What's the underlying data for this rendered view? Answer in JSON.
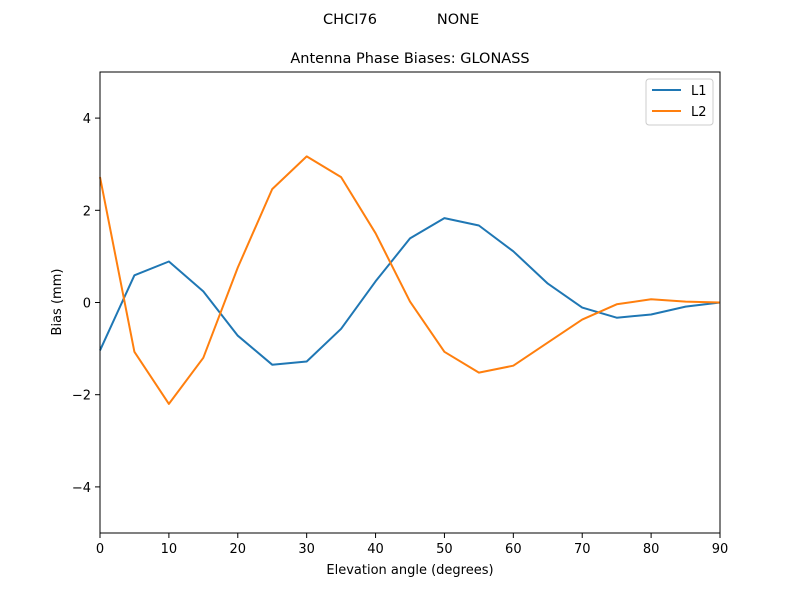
{
  "figure": {
    "suptitle_left": "CHCI76",
    "suptitle_right": "NONE",
    "title": "Antenna Phase Biases: GLONASS"
  },
  "chart_data": {
    "type": "line",
    "title": "Antenna Phase Biases: GLONASS",
    "suptitle": "CHCI76           NONE",
    "xlabel": "Elevation angle (degrees)",
    "ylabel": "Bias (mm)",
    "xlim": [
      0,
      90
    ],
    "ylim": [
      -5,
      5
    ],
    "xticks": [
      0,
      10,
      20,
      30,
      40,
      50,
      60,
      70,
      80,
      90
    ],
    "yticks": [
      -4,
      -2,
      0,
      2,
      4
    ],
    "ytick_labels": [
      "−4",
      "−2",
      "0",
      "2",
      "4"
    ],
    "grid": false,
    "legend_position": "upper right",
    "x": [
      0,
      5,
      10,
      15,
      20,
      25,
      30,
      35,
      40,
      45,
      50,
      55,
      60,
      65,
      70,
      75,
      80,
      85,
      90
    ],
    "series": [
      {
        "name": "L1",
        "color": "#1f77b4",
        "values": [
          -1.04,
          0.59,
          0.89,
          0.24,
          -0.72,
          -1.35,
          -1.28,
          -0.57,
          0.46,
          1.39,
          1.83,
          1.67,
          1.11,
          0.41,
          -0.11,
          -0.33,
          -0.26,
          -0.09,
          0.0
        ]
      },
      {
        "name": "L2",
        "color": "#ff7f0e",
        "values": [
          2.72,
          -1.07,
          -2.2,
          -1.2,
          0.76,
          2.46,
          3.17,
          2.72,
          1.5,
          0.02,
          -1.07,
          -1.52,
          -1.37,
          -0.87,
          -0.37,
          -0.04,
          0.07,
          0.02,
          0.0
        ]
      }
    ]
  }
}
